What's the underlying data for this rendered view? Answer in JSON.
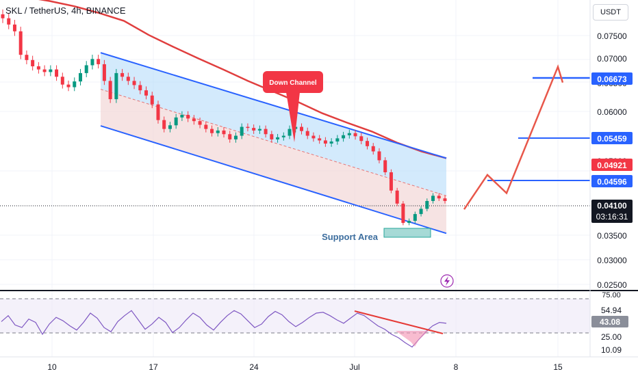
{
  "header": {
    "symbol_line": "SKL / TetherUS, 4h, BINANCE",
    "currency": "USDT"
  },
  "chart_data": [
    {
      "type": "line",
      "title": "SKL / TetherUS, 4h, BINANCE",
      "price_axis_ticks": [
        "0.07500",
        "0.07000",
        "0.06500",
        "0.06000",
        "0.05000",
        "0.03500",
        "0.03000",
        "0.02500"
      ],
      "price_ylim": [
        0.0245,
        0.0795
      ],
      "time_axis_ticks": [
        "10",
        "17",
        "24",
        "Jul",
        "8",
        "15"
      ],
      "grid": true,
      "price_labels": {
        "target": "0.06673",
        "level_2": "0.05459",
        "moving_average": "0.04921",
        "level_1": "0.04596",
        "last_price": "0.04100",
        "countdown": "03:16:31"
      },
      "price_label_values": {
        "target": 0.06673,
        "level_2": 0.05459,
        "moving_average": 0.04921,
        "level_1": 0.04596,
        "last_price": 0.041
      },
      "annotations": {
        "down_channel": "Down Channel",
        "support_area": "Support Area"
      },
      "series": [
        {
          "kind": "close",
          "color": "#089981",
          "values": [
            0.076,
            0.0748,
            0.0735,
            0.069,
            0.068,
            0.0668,
            0.0662,
            0.0657,
            0.0662,
            0.0648,
            0.0633,
            0.0628,
            0.0639,
            0.0655,
            0.067,
            0.0682,
            0.0672,
            0.064,
            0.0605,
            0.0655,
            0.0648,
            0.064,
            0.0632,
            0.0622,
            0.0612,
            0.0595,
            0.0565,
            0.0548,
            0.0555,
            0.057,
            0.0575,
            0.0568,
            0.0563,
            0.0556,
            0.0548,
            0.054,
            0.0545,
            0.0538,
            0.0528,
            0.0535,
            0.0552,
            0.055,
            0.0545,
            0.0548,
            0.0538,
            0.0528,
            0.0532,
            0.0535,
            0.0548,
            0.0552,
            0.0544,
            0.0535,
            0.053,
            0.0526,
            0.052,
            0.0524,
            0.053,
            0.0536,
            0.054,
            0.0534,
            0.0525,
            0.0515,
            0.0505,
            0.0488,
            0.0465,
            0.043,
            0.0405,
            0.0368,
            0.0372,
            0.0385,
            0.0395,
            0.041,
            0.042,
            0.0415,
            0.041
          ]
        },
        {
          "kind": "moving_average",
          "color": "#e03e3e",
          "values": [
            0.082,
            0.0801,
            0.0793,
            0.0783,
            0.077,
            0.0755,
            0.0728,
            0.0705,
            0.0683,
            0.0662,
            0.064,
            0.062,
            0.06,
            0.0578,
            0.056,
            0.0543,
            0.0522,
            0.0505,
            0.0492
          ]
        },
        {
          "kind": "projection",
          "color": "#e8574a",
          "values": [
            0.0394,
            0.046,
            0.0425,
            0.0667,
            0.0637
          ]
        }
      ],
      "channel": {
        "upper": [
          0.0694,
          0.0492
        ],
        "lower": [
          0.0554,
          0.0348
        ],
        "mid": [
          0.0624,
          0.042
        ]
      }
    },
    {
      "type": "line",
      "title": "",
      "axis_ticks": [
        "75.00",
        "54.94",
        "43.08",
        "25.00",
        "10.09"
      ],
      "ylim": [
        5,
        80
      ],
      "levels": [
        70,
        30
      ],
      "value_labels": {
        "upper": "54.94",
        "current": "43.08"
      },
      "series": [
        {
          "kind": "oscillator",
          "color": "#7e57c2",
          "values": [
            45,
            52,
            41,
            38,
            48,
            44,
            30,
            42,
            50,
            46,
            40,
            35,
            44,
            55,
            49,
            38,
            33,
            45,
            52,
            58,
            47,
            36,
            42,
            50,
            44,
            32,
            38,
            47,
            55,
            50,
            41,
            35,
            44,
            52,
            58,
            54,
            46,
            38,
            42,
            51,
            57,
            53,
            45,
            39,
            44,
            50,
            55,
            56,
            52,
            47,
            43,
            49,
            55,
            52,
            46,
            40,
            36,
            30,
            26,
            20,
            15,
            24,
            33,
            40,
            44,
            43
          ]
        }
      ]
    }
  ]
}
